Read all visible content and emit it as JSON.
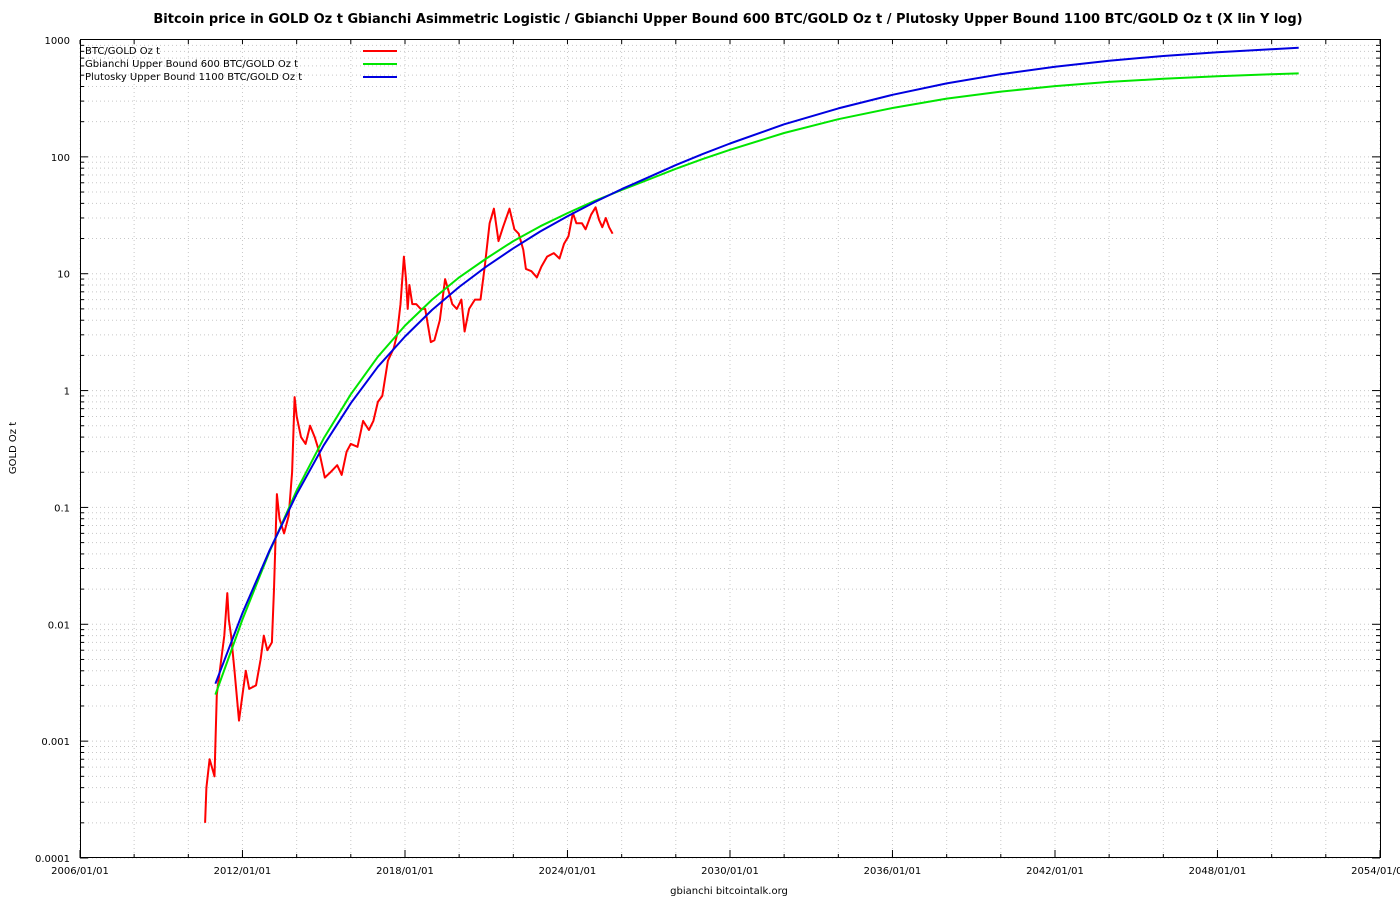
{
  "chart_data": {
    "type": "line",
    "title": "Bitcoin price in GOLD Oz t Gbianchi Asimmetric Logistic / Gbianchi Upper Bound 600  BTC/GOLD Oz t / Plutosky Upper Bound 1100  BTC/GOLD Oz t  (X lin Y log)",
    "xlabel": "gbianchi bitcointalk.org",
    "ylabel": "GOLD Oz t",
    "x_scale": "linear-date",
    "y_scale": "log",
    "xlim": [
      "2006-01-01",
      "2054-01-01"
    ],
    "ylim": [
      0.0001,
      1000
    ],
    "x_ticks": [
      "2006/01/01",
      "2012/01/01",
      "2018/01/01",
      "2024/01/01",
      "2030/01/01",
      "2036/01/01",
      "2042/01/01",
      "2048/01/01",
      "2054/01/01"
    ],
    "y_ticks": [
      "0.0001",
      "0.001",
      "0.01",
      "0.1",
      "1",
      "10",
      "100",
      "1000"
    ],
    "grid": true,
    "legend_position": "top-left",
    "series": [
      {
        "name": "BTC/GOLD Oz t",
        "color": "#ff0000",
        "points": [
          [
            "2010-08-15",
            0.0002
          ],
          [
            "2010-09-01",
            0.0004
          ],
          [
            "2010-10-15",
            0.0007
          ],
          [
            "2010-11-15",
            0.0006
          ],
          [
            "2010-12-20",
            0.0005
          ],
          [
            "2011-01-20",
            0.0025
          ],
          [
            "2011-03-01",
            0.004
          ],
          [
            "2011-05-01",
            0.008
          ],
          [
            "2011-06-10",
            0.0185
          ],
          [
            "2011-07-01",
            0.011
          ],
          [
            "2011-08-01",
            0.008
          ],
          [
            "2011-09-15",
            0.004
          ],
          [
            "2011-11-15",
            0.0015
          ],
          [
            "2012-01-01",
            0.0025
          ],
          [
            "2012-02-15",
            0.004
          ],
          [
            "2012-04-01",
            0.0028
          ],
          [
            "2012-07-01",
            0.003
          ],
          [
            "2012-09-01",
            0.005
          ],
          [
            "2012-10-15",
            0.008
          ],
          [
            "2012-12-01",
            0.006
          ],
          [
            "2013-02-01",
            0.007
          ],
          [
            "2013-03-01",
            0.02
          ],
          [
            "2013-04-10",
            0.13
          ],
          [
            "2013-05-15",
            0.08
          ],
          [
            "2013-07-15",
            0.06
          ],
          [
            "2013-09-15",
            0.085
          ],
          [
            "2013-11-01",
            0.2
          ],
          [
            "2013-12-04",
            0.88
          ],
          [
            "2014-01-01",
            0.6
          ],
          [
            "2014-03-01",
            0.4
          ],
          [
            "2014-05-01",
            0.35
          ],
          [
            "2014-07-01",
            0.5
          ],
          [
            "2014-09-01",
            0.4
          ],
          [
            "2014-11-01",
            0.3
          ],
          [
            "2015-01-15",
            0.18
          ],
          [
            "2015-04-01",
            0.2
          ],
          [
            "2015-07-01",
            0.23
          ],
          [
            "2015-09-01",
            0.19
          ],
          [
            "2015-11-05",
            0.3
          ],
          [
            "2016-01-01",
            0.35
          ],
          [
            "2016-04-01",
            0.33
          ],
          [
            "2016-06-15",
            0.55
          ],
          [
            "2016-09-01",
            0.46
          ],
          [
            "2016-11-01",
            0.55
          ],
          [
            "2017-01-01",
            0.8
          ],
          [
            "2017-03-01",
            0.9
          ],
          [
            "2017-05-15",
            1.8
          ],
          [
            "2017-08-01",
            2.3
          ],
          [
            "2017-09-15",
            3.0
          ],
          [
            "2017-11-01",
            5.5
          ],
          [
            "2017-12-17",
            14.0
          ],
          [
            "2018-01-15",
            9.0
          ],
          [
            "2018-02-06",
            5.0
          ],
          [
            "2018-03-01",
            8.0
          ],
          [
            "2018-04-10",
            5.5
          ],
          [
            "2018-06-01",
            5.5
          ],
          [
            "2018-08-01",
            5.0
          ],
          [
            "2018-10-01",
            5.0
          ],
          [
            "2018-12-15",
            2.6
          ],
          [
            "2019-02-01",
            2.7
          ],
          [
            "2019-04-15",
            4.0
          ],
          [
            "2019-06-26",
            9.0
          ],
          [
            "2019-08-01",
            7.5
          ],
          [
            "2019-10-01",
            5.5
          ],
          [
            "2019-12-01",
            5.0
          ],
          [
            "2020-02-01",
            6.0
          ],
          [
            "2020-03-15",
            3.2
          ],
          [
            "2020-05-15",
            5.0
          ],
          [
            "2020-08-01",
            6.0
          ],
          [
            "2020-10-15",
            6.0
          ],
          [
            "2020-12-15",
            12.0
          ],
          [
            "2021-02-15",
            27.0
          ],
          [
            "2021-04-14",
            36.0
          ],
          [
            "2021-06-15",
            19.0
          ],
          [
            "2021-08-15",
            25.0
          ],
          [
            "2021-11-10",
            36.0
          ],
          [
            "2022-01-15",
            24.0
          ],
          [
            "2022-03-15",
            22.0
          ],
          [
            "2022-05-15",
            16.0
          ],
          [
            "2022-06-20",
            11.0
          ],
          [
            "2022-09-01",
            10.5
          ],
          [
            "2022-11-15",
            9.3
          ],
          [
            "2023-01-15",
            11.5
          ],
          [
            "2023-04-01",
            14.0
          ],
          [
            "2023-07-01",
            15.0
          ],
          [
            "2023-09-15",
            13.5
          ],
          [
            "2023-11-15",
            18.0
          ],
          [
            "2024-01-15",
            21.0
          ],
          [
            "2024-03-14",
            33.0
          ],
          [
            "2024-05-01",
            27.0
          ],
          [
            "2024-07-15",
            27.0
          ],
          [
            "2024-09-01",
            24.0
          ],
          [
            "2024-11-15",
            32.0
          ],
          [
            "2025-01-15",
            37.0
          ],
          [
            "2025-03-01",
            29.0
          ],
          [
            "2025-04-15",
            25.0
          ],
          [
            "2025-06-01",
            30.0
          ],
          [
            "2025-07-15",
            25.0
          ],
          [
            "2025-09-01",
            22.0
          ]
        ]
      },
      {
        "name": "Gbianchi Upper Bound 600  BTC/GOLD Oz t",
        "color": "#00e600",
        "points": [
          [
            "2011-01-01",
            0.0025
          ],
          [
            "2012-01-01",
            0.011
          ],
          [
            "2013-01-01",
            0.042
          ],
          [
            "2014-01-01",
            0.14
          ],
          [
            "2015-01-01",
            0.39
          ],
          [
            "2016-01-01",
            0.93
          ],
          [
            "2017-01-01",
            1.95
          ],
          [
            "2018-01-01",
            3.6
          ],
          [
            "2019-01-01",
            6.0
          ],
          [
            "2020-01-01",
            9.3
          ],
          [
            "2021-01-01",
            13.5
          ],
          [
            "2022-01-01",
            19.0
          ],
          [
            "2023-01-01",
            25.5
          ],
          [
            "2024-01-01",
            33.0
          ],
          [
            "2025-01-01",
            42.0
          ],
          [
            "2026-01-01",
            52.0
          ],
          [
            "2027-01-01",
            64.0
          ],
          [
            "2028-01-01",
            79.0
          ],
          [
            "2029-01-01",
            96.0
          ],
          [
            "2030-01-01",
            115.0
          ],
          [
            "2032-01-01",
            160.0
          ],
          [
            "2034-01-01",
            210.0
          ],
          [
            "2036-01-01",
            262.0
          ],
          [
            "2038-01-01",
            315.0
          ],
          [
            "2040-01-01",
            362.0
          ],
          [
            "2042-01-01",
            403.0
          ],
          [
            "2044-01-01",
            438.0
          ],
          [
            "2046-01-01",
            466.0
          ],
          [
            "2048-01-01",
            490.0
          ],
          [
            "2050-01-01",
            510.0
          ],
          [
            "2051-01-01",
            518.0
          ]
        ]
      },
      {
        "name": "Plutosky Upper Bound 1100  BTC/GOLD Oz t",
        "color": "#0000e0",
        "points": [
          [
            "2011-01-01",
            0.0031
          ],
          [
            "2012-01-01",
            0.0125
          ],
          [
            "2013-01-01",
            0.043
          ],
          [
            "2014-01-01",
            0.13
          ],
          [
            "2015-01-01",
            0.34
          ],
          [
            "2016-01-01",
            0.78
          ],
          [
            "2017-01-01",
            1.6
          ],
          [
            "2018-01-01",
            2.9
          ],
          [
            "2019-01-01",
            4.9
          ],
          [
            "2020-01-01",
            7.7
          ],
          [
            "2021-01-01",
            11.5
          ],
          [
            "2022-01-01",
            16.5
          ],
          [
            "2023-01-01",
            23.0
          ],
          [
            "2024-01-01",
            31.0
          ],
          [
            "2025-01-01",
            41.0
          ],
          [
            "2026-01-01",
            53.0
          ],
          [
            "2027-01-01",
            67.0
          ],
          [
            "2028-01-01",
            85.0
          ],
          [
            "2029-01-01",
            106.0
          ],
          [
            "2030-01-01",
            130.0
          ],
          [
            "2032-01-01",
            190.0
          ],
          [
            "2034-01-01",
            260.0
          ],
          [
            "2036-01-01",
            340.0
          ],
          [
            "2038-01-01",
            425.0
          ],
          [
            "2040-01-01",
            510.0
          ],
          [
            "2042-01-01",
            590.0
          ],
          [
            "2044-01-01",
            665.0
          ],
          [
            "2046-01-01",
            730.0
          ],
          [
            "2048-01-01",
            785.0
          ],
          [
            "2050-01-01",
            835.0
          ],
          [
            "2051-01-01",
            860.0
          ]
        ]
      }
    ]
  }
}
